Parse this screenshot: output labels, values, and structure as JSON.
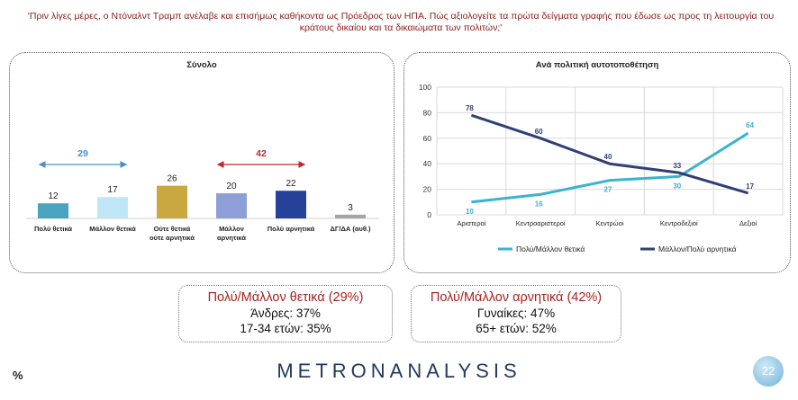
{
  "question": "'Πριν λίγες μέρες, ο Ντόναλντ Τραμπ ανέλαβε και επισήμως καθήκοντα ως Πρόεδρος των ΗΠΑ. Πώς αξιολογείτε τα πρώτα δείγματα γραφής που έδωσε ως προς τη λειτουργία του κράτους δικαίου και τα δικαιώματα των πολιτών;'",
  "chart_data": [
    {
      "type": "bar",
      "title": "Σύνολο",
      "categories": [
        "Πολύ θετικά",
        "Μάλλον θετικά",
        "Ούτε θετικά ούτε αρνητικά",
        "Μάλλον αρνητικά",
        "Πολύ αρνητικά",
        "ΔΓ/ΔΑ (αυθ.)"
      ],
      "values": [
        12,
        17,
        26,
        20,
        22,
        3
      ],
      "colors": [
        "#4aa3bf",
        "#bfe6f5",
        "#c9a83f",
        "#8d9fd6",
        "#25419a",
        "#a6a6a6"
      ],
      "annotations": [
        {
          "label": "29",
          "from": 0,
          "to": 1,
          "color": "#4a90c8"
        },
        {
          "label": "42",
          "from": 3,
          "to": 4,
          "color": "#c0282d"
        }
      ]
    },
    {
      "type": "line",
      "title": "Ανά πολιτική αυτοτοποθέτηση",
      "categories": [
        "Αριστεροί",
        "Κεντροαριστεροί",
        "Κεντρώοι",
        "Κεντροδεξιοί",
        "Δεξιοί"
      ],
      "ylim": [
        0,
        100
      ],
      "yticks": [
        0,
        20,
        40,
        60,
        80,
        100
      ],
      "grid": true,
      "legend": "bottom",
      "series": [
        {
          "name": "Πολύ/Μάλλον θετικά",
          "values": [
            10,
            16,
            27,
            30,
            64
          ],
          "color": "#3bb2d0"
        },
        {
          "name": "Μάλλον/Πολύ αρνητικά",
          "values": [
            78,
            60,
            40,
            33,
            17
          ],
          "color": "#2f3f75"
        }
      ]
    }
  ],
  "summary_positive": {
    "heading": "Πολύ/Μάλλον θετικά (29%)",
    "line1": "Άνδρες: 37%",
    "line2": "17-34 ετών: 35%"
  },
  "summary_negative": {
    "heading": "Πολύ/Μάλλον αρνητικά (42%)",
    "line1": "Γυναίκες: 47%",
    "line2": "65+ ετών: 52%"
  },
  "footer": {
    "percent": "%",
    "logo": "METRONANALYSIS",
    "page": "22"
  }
}
